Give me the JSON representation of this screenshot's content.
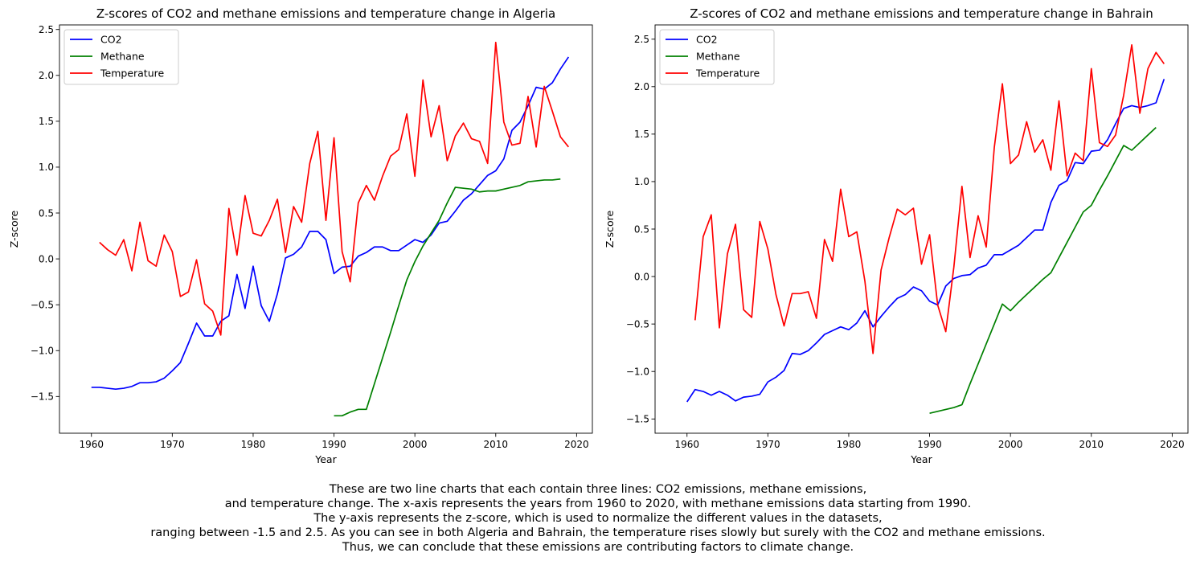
{
  "chart_data": [
    {
      "type": "line",
      "title": "Z-scores of CO2 and methane emissions and temperature change in Algeria",
      "xlabel": "Year",
      "ylabel": "Z-score",
      "xlim": [
        1956.05,
        2021.95
      ],
      "ylim": [
        -1.9,
        2.55
      ],
      "xticks": [
        1960,
        1970,
        1980,
        1990,
        2000,
        2010,
        2020
      ],
      "xtick_labels": [
        "1960",
        "1970",
        "1980",
        "1990",
        "2000",
        "2010",
        "2020"
      ],
      "yticks": [
        -1.5,
        -1.0,
        -0.5,
        0.0,
        0.5,
        1.0,
        1.5,
        2.0,
        2.5
      ],
      "ytick_labels": [
        "−1.5",
        "−1.0",
        "−0.5",
        "0.0",
        "0.5",
        "1.0",
        "1.5",
        "2.0",
        "2.5"
      ],
      "legend_position": "top-left",
      "grid": false,
      "series": [
        {
          "name": "CO2",
          "color": "#0000ff",
          "x": [
            1960,
            1961,
            1962,
            1963,
            1964,
            1965,
            1966,
            1967,
            1968,
            1969,
            1970,
            1971,
            1972,
            1973,
            1974,
            1975,
            1976,
            1977,
            1978,
            1979,
            1980,
            1981,
            1982,
            1983,
            1984,
            1985,
            1986,
            1987,
            1988,
            1989,
            1990,
            1991,
            1992,
            1993,
            1994,
            1995,
            1996,
            1997,
            1998,
            1999,
            2000,
            2001,
            2002,
            2003,
            2004,
            2005,
            2006,
            2007,
            2008,
            2009,
            2010,
            2011,
            2012,
            2013,
            2014,
            2015,
            2016,
            2017,
            2018,
            2019
          ],
          "y": [
            -1.4,
            -1.4,
            -1.41,
            -1.42,
            -1.41,
            -1.39,
            -1.35,
            -1.35,
            -1.34,
            -1.3,
            -1.22,
            -1.13,
            -0.92,
            -0.7,
            -0.84,
            -0.84,
            -0.68,
            -0.62,
            -0.17,
            -0.54,
            -0.08,
            -0.51,
            -0.68,
            -0.38,
            0.01,
            0.05,
            0.13,
            0.3,
            0.3,
            0.21,
            -0.16,
            -0.09,
            -0.08,
            0.03,
            0.07,
            0.13,
            0.13,
            0.09,
            0.09,
            0.15,
            0.21,
            0.18,
            0.26,
            0.39,
            0.41,
            0.52,
            0.64,
            0.71,
            0.81,
            0.91,
            0.96,
            1.09,
            1.4,
            1.49,
            1.67,
            1.87,
            1.85,
            1.92,
            2.07,
            2.2
          ]
        },
        {
          "name": "Methane",
          "color": "#008000",
          "x": [
            1990,
            1991,
            1992,
            1993,
            1994,
            1995,
            1996,
            1997,
            1998,
            1999,
            2000,
            2001,
            2002,
            2003,
            2004,
            2005,
            2006,
            2007,
            2008,
            2009,
            2010,
            2011,
            2012,
            2013,
            2014,
            2015,
            2016,
            2017,
            2018
          ],
          "y": [
            -1.71,
            -1.71,
            -1.67,
            -1.64,
            -1.64,
            -1.36,
            -1.08,
            -0.8,
            -0.51,
            -0.23,
            -0.03,
            0.14,
            0.28,
            0.42,
            0.61,
            0.78,
            0.77,
            0.76,
            0.73,
            0.74,
            0.74,
            0.76,
            0.78,
            0.8,
            0.84,
            0.85,
            0.86,
            0.86,
            0.87
          ]
        },
        {
          "name": "Temperature",
          "color": "#ff0000",
          "x": [
            1961,
            1962,
            1963,
            1964,
            1965,
            1966,
            1967,
            1968,
            1969,
            1970,
            1971,
            1972,
            1973,
            1974,
            1975,
            1976,
            1977,
            1978,
            1979,
            1980,
            1981,
            1982,
            1983,
            1984,
            1985,
            1986,
            1987,
            1988,
            1989,
            1990,
            1991,
            1992,
            1993,
            1994,
            1995,
            1996,
            1997,
            1998,
            1999,
            2000,
            2001,
            2002,
            2003,
            2004,
            2005,
            2006,
            2007,
            2008,
            2009,
            2010,
            2011,
            2012,
            2013,
            2014,
            2015,
            2016,
            2017,
            2018,
            2019
          ],
          "y": [
            0.18,
            0.1,
            0.04,
            0.21,
            -0.13,
            0.4,
            -0.02,
            -0.08,
            0.26,
            0.08,
            -0.41,
            -0.36,
            -0.01,
            -0.49,
            -0.57,
            -0.83,
            0.55,
            0.04,
            0.69,
            0.28,
            0.25,
            0.42,
            0.65,
            0.07,
            0.57,
            0.4,
            1.04,
            1.39,
            0.42,
            1.32,
            0.08,
            -0.25,
            0.61,
            0.8,
            0.64,
            0.9,
            1.12,
            1.19,
            1.58,
            0.9,
            1.95,
            1.33,
            1.67,
            1.07,
            1.34,
            1.48,
            1.31,
            1.28,
            1.04,
            2.36,
            1.49,
            1.24,
            1.26,
            1.77,
            1.22,
            1.88,
            1.61,
            1.33,
            1.22
          ]
        }
      ]
    },
    {
      "type": "line",
      "title": "Z-scores of CO2 and methane emissions and temperature change in Bahrain",
      "xlabel": "Year",
      "ylabel": "Z-score",
      "xlim": [
        1956.05,
        2021.95
      ],
      "ylim": [
        -1.65,
        2.65
      ],
      "xticks": [
        1960,
        1970,
        1980,
        1990,
        2000,
        2010,
        2020
      ],
      "xtick_labels": [
        "1960",
        "1970",
        "1980",
        "1990",
        "2000",
        "2010",
        "2020"
      ],
      "yticks": [
        -1.5,
        -1.0,
        -0.5,
        0.0,
        0.5,
        1.0,
        1.5,
        2.0,
        2.5
      ],
      "ytick_labels": [
        "−1.5",
        "−1.0",
        "−0.5",
        "0.0",
        "0.5",
        "1.0",
        "1.5",
        "2.0",
        "2.5"
      ],
      "legend_position": "top-left",
      "grid": false,
      "series": [
        {
          "name": "CO2",
          "color": "#0000ff",
          "x": [
            1960,
            1961,
            1962,
            1963,
            1964,
            1965,
            1966,
            1967,
            1968,
            1969,
            1970,
            1971,
            1972,
            1973,
            1974,
            1975,
            1976,
            1977,
            1978,
            1979,
            1980,
            1981,
            1982,
            1983,
            1984,
            1985,
            1986,
            1987,
            1988,
            1989,
            1990,
            1991,
            1992,
            1993,
            1994,
            1995,
            1996,
            1997,
            1998,
            1999,
            2000,
            2001,
            2002,
            2003,
            2004,
            2005,
            2006,
            2007,
            2008,
            2009,
            2010,
            2011,
            2012,
            2013,
            2014,
            2015,
            2016,
            2017,
            2018,
            2019
          ],
          "y": [
            -1.32,
            -1.19,
            -1.21,
            -1.25,
            -1.21,
            -1.25,
            -1.31,
            -1.27,
            -1.26,
            -1.24,
            -1.11,
            -1.06,
            -0.99,
            -0.81,
            -0.82,
            -0.78,
            -0.7,
            -0.61,
            -0.57,
            -0.53,
            -0.56,
            -0.49,
            -0.36,
            -0.53,
            -0.42,
            -0.32,
            -0.23,
            -0.19,
            -0.11,
            -0.15,
            -0.26,
            -0.3,
            -0.1,
            -0.02,
            0.01,
            0.02,
            0.09,
            0.12,
            0.23,
            0.23,
            0.28,
            0.33,
            0.41,
            0.49,
            0.49,
            0.78,
            0.96,
            1.01,
            1.2,
            1.19,
            1.32,
            1.33,
            1.44,
            1.61,
            1.77,
            1.8,
            1.78,
            1.8,
            1.83,
            2.08
          ]
        },
        {
          "name": "Methane",
          "color": "#008000",
          "x": [
            1990,
            1991,
            1992,
            1993,
            1994,
            1995,
            1996,
            1997,
            1998,
            1999,
            2000,
            2001,
            2002,
            2003,
            2004,
            2005,
            2006,
            2007,
            2008,
            2009,
            2010,
            2011,
            2012,
            2013,
            2014,
            2015,
            2016,
            2017,
            2018
          ],
          "y": [
            -1.44,
            -1.42,
            -1.4,
            -1.38,
            -1.35,
            -1.13,
            -0.92,
            -0.71,
            -0.5,
            -0.29,
            -0.36,
            -0.27,
            -0.19,
            -0.11,
            -0.03,
            0.04,
            0.2,
            0.36,
            0.52,
            0.68,
            0.75,
            0.91,
            1.06,
            1.22,
            1.38,
            1.33,
            1.41,
            1.49,
            1.57
          ]
        },
        {
          "name": "Temperature",
          "color": "#ff0000",
          "x": [
            1961,
            1962,
            1963,
            1964,
            1965,
            1966,
            1967,
            1968,
            1969,
            1970,
            1971,
            1972,
            1973,
            1974,
            1975,
            1976,
            1977,
            1978,
            1979,
            1980,
            1981,
            1982,
            1983,
            1984,
            1985,
            1986,
            1987,
            1988,
            1989,
            1990,
            1991,
            1992,
            1993,
            1994,
            1995,
            1996,
            1997,
            1998,
            1999,
            2000,
            2001,
            2002,
            2003,
            2004,
            2005,
            2006,
            2007,
            2008,
            2009,
            2010,
            2011,
            2012,
            2013,
            2014,
            2015,
            2016,
            2017,
            2018,
            2019
          ],
          "y": [
            -0.46,
            0.42,
            0.65,
            -0.54,
            0.24,
            0.55,
            -0.35,
            -0.43,
            0.58,
            0.29,
            -0.19,
            -0.52,
            -0.18,
            -0.18,
            -0.16,
            -0.44,
            0.39,
            0.16,
            0.92,
            0.42,
            0.47,
            -0.05,
            -0.81,
            0.07,
            0.41,
            0.71,
            0.65,
            0.72,
            0.13,
            0.44,
            -0.3,
            -0.58,
            0.1,
            0.95,
            0.2,
            0.64,
            0.31,
            1.36,
            2.03,
            1.19,
            1.28,
            1.63,
            1.31,
            1.44,
            1.12,
            1.85,
            1.06,
            1.3,
            1.22,
            2.19,
            1.41,
            1.37,
            1.49,
            1.91,
            2.44,
            1.72,
            2.19,
            2.36,
            2.24
          ]
        }
      ]
    }
  ],
  "caption": {
    "lines": [
      "These are two line charts that each contain three lines: CO2 emissions, methane emissions,",
      "and temperature change. The x-axis represents the years from 1960 to 2020, with methane emissions data starting from 1990.",
      "The y-axis represents the z-score, which is used to normalize the different values in the datasets,",
      "ranging between -1.5 and 2.5. As you can see in both Algeria and Bahrain, the temperature rises slowly but surely with the CO2 and methane emissions.",
      "Thus, we can conclude that these emissions are contributing factors to climate change."
    ]
  }
}
